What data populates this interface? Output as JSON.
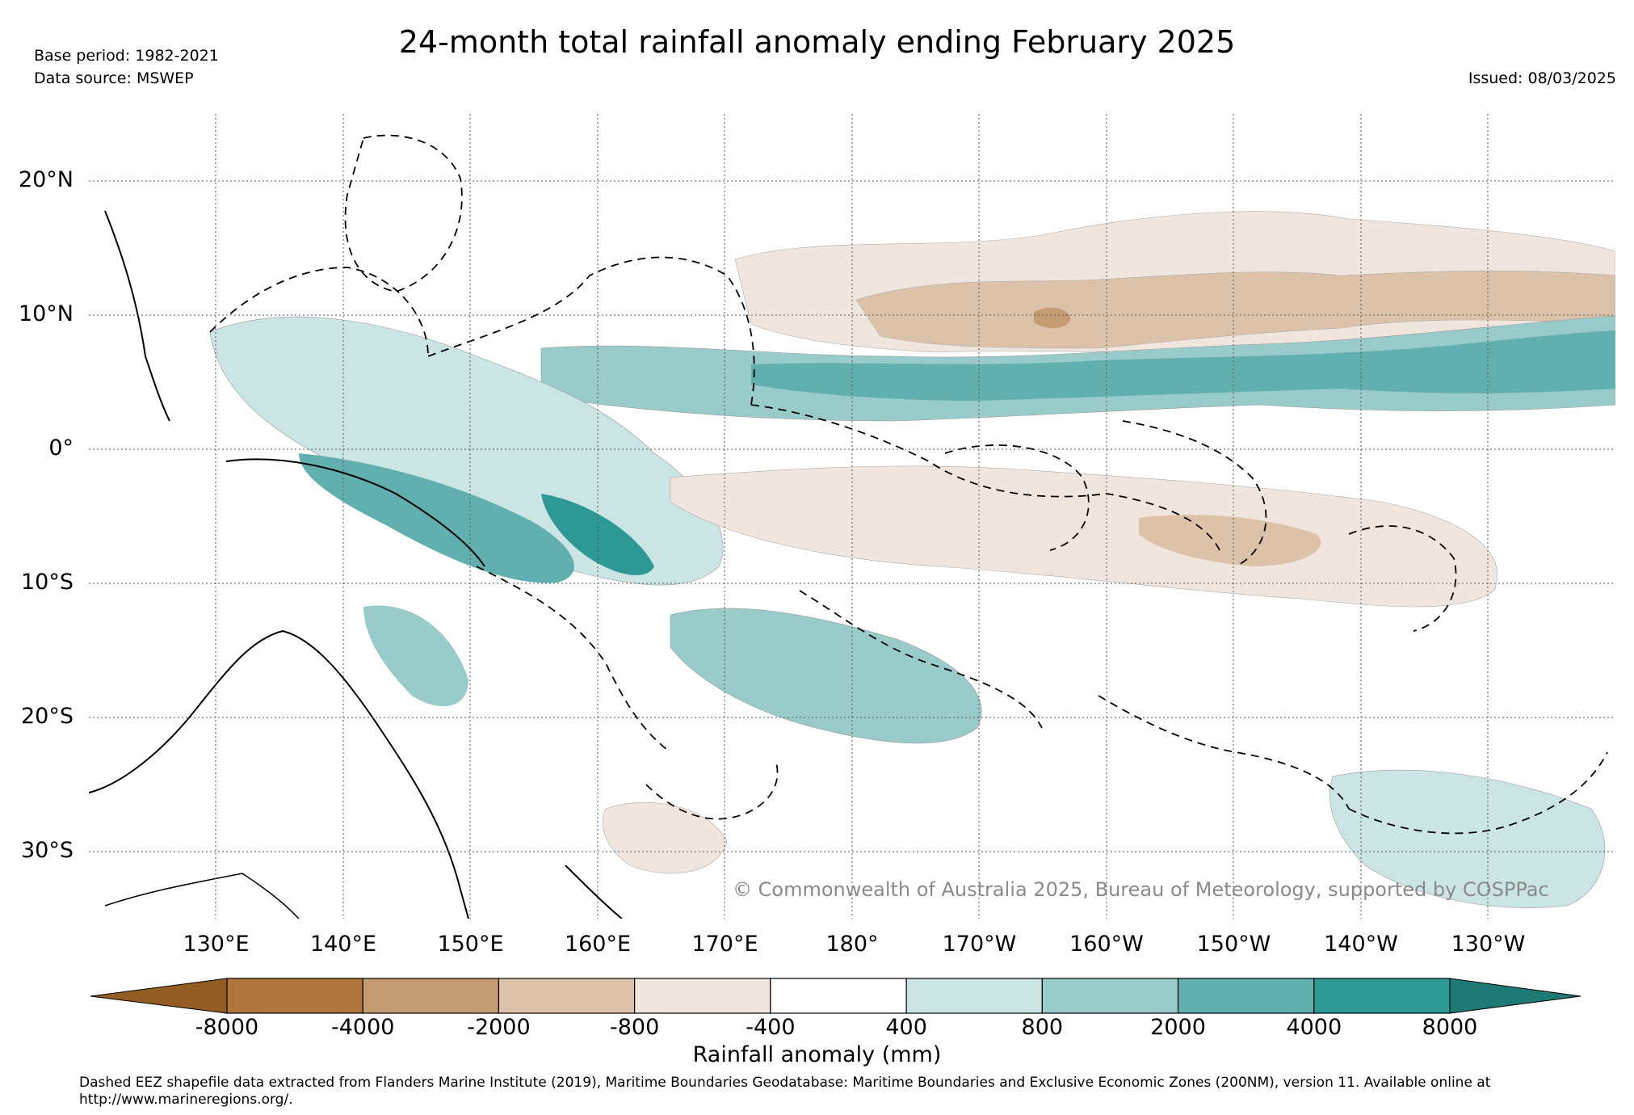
{
  "title": "24-month total rainfall anomaly ending February 2025",
  "base_period": "Base period: 1982-2021",
  "data_source": "Data source: MSWEP",
  "issued": "Issued: 08/03/2025",
  "map": {
    "region": "Pacific",
    "lon_range": [
      120,
      240
    ],
    "lat_range": [
      -35,
      25
    ],
    "gridlines": "dotted",
    "overlay": "Dashed EEZ boundaries",
    "lat_labels": [
      "20°N",
      "10°N",
      "0°",
      "10°S",
      "20°S",
      "30°S"
    ],
    "lat_values": [
      20,
      10,
      0,
      -10,
      -20,
      -30
    ],
    "lon_labels": [
      "130°E",
      "140°E",
      "150°E",
      "160°E",
      "170°E",
      "180°",
      "170°W",
      "160°W",
      "150°W",
      "140°W",
      "130°W"
    ],
    "lon_values": [
      130,
      140,
      150,
      160,
      170,
      180,
      190,
      200,
      210,
      220,
      230
    ]
  },
  "copyright": "© Commonwealth of Australia 2025, Bureau of Meteorology, supported by COSPPac",
  "colorbar": {
    "label": "Rainfall anomaly (mm)",
    "ticks": [
      "-8000",
      "-4000",
      "-2000",
      "-800",
      "-400",
      "400",
      "800",
      "2000",
      "4000",
      "8000"
    ],
    "colors": [
      "#935c23",
      "#ae763c",
      "#c59b72",
      "#ddc2aa",
      "#f1e6dd",
      "#ffffff",
      "#cbe5e4",
      "#98cbca",
      "#61afae",
      "#2e9894",
      "#1f7a76"
    ]
  },
  "footnote": "Dashed EEZ shapefile data extracted from Flanders Marine Institute (2019), Maritime Boundaries Geodatabase: Maritime Boundaries and Exclusive Economic Zones (200NM), version 11. Available online at http://www.marineregions.org/."
}
